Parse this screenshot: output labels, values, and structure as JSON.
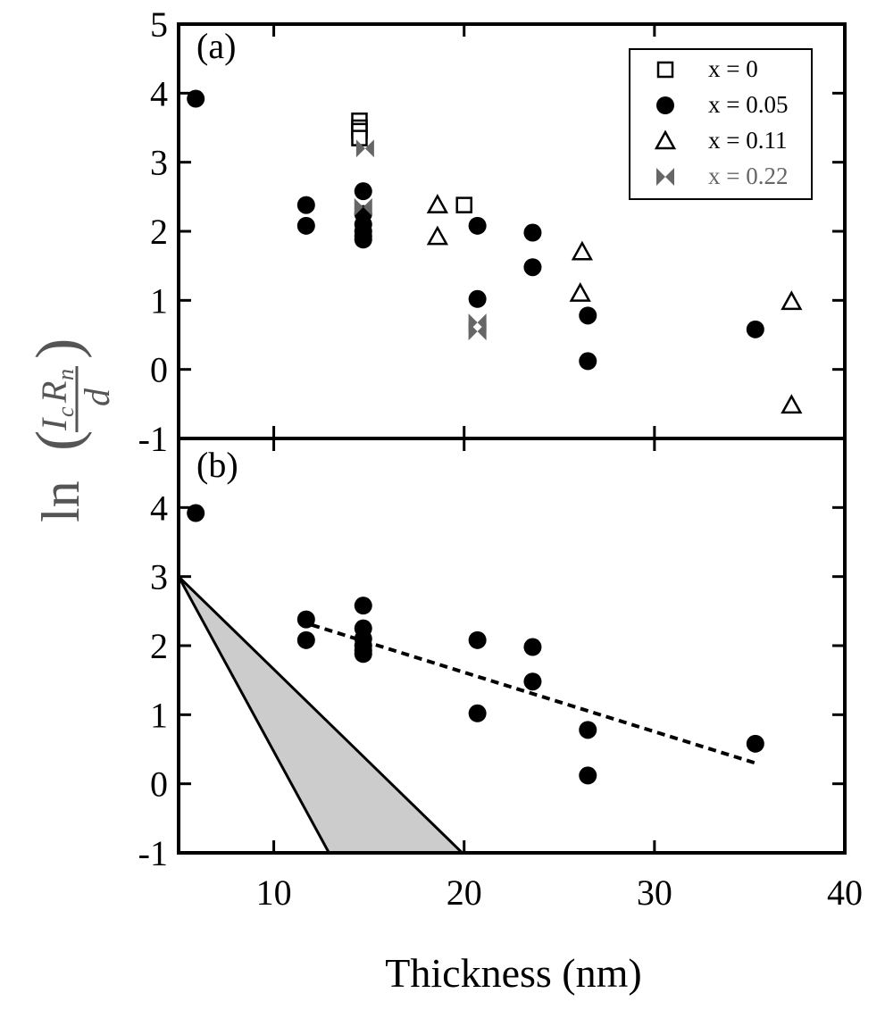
{
  "chart_data": [
    {
      "panel_label": "(a)",
      "type": "scatter",
      "xlabel": "Thickness (nm)",
      "ylabel": "ln(IcRn/d)",
      "xlim": [
        5,
        40
      ],
      "ylim": [
        -1,
        5
      ],
      "x_ticks": [
        "10",
        "20",
        "30",
        "40"
      ],
      "y_ticks": [
        "5",
        "4",
        "3",
        "2",
        "1",
        "0",
        "-1"
      ],
      "legend_position": "top-right",
      "series": [
        {
          "name": "x = 0",
          "marker": "open-square",
          "color": "#000000",
          "x": [
            14.5,
            14.5,
            14.5,
            14.5,
            20.0
          ],
          "y": [
            3.6,
            3.5,
            3.45,
            3.35,
            2.38
          ]
        },
        {
          "name": "x = 0.05",
          "marker": "filled-circle",
          "color": "#000000",
          "x": [
            5.9,
            11.7,
            11.7,
            14.7,
            14.7,
            14.7,
            14.7,
            14.7,
            14.7,
            20.7,
            20.7,
            23.6,
            23.6,
            26.5,
            26.5,
            35.3
          ],
          "y": [
            3.92,
            2.38,
            2.08,
            2.58,
            2.25,
            2.1,
            2.0,
            1.93,
            1.88,
            2.08,
            1.02,
            1.98,
            1.48,
            0.78,
            0.12,
            0.58
          ]
        },
        {
          "name": "x = 0.11",
          "marker": "open-triangle",
          "color": "#000000",
          "x": [
            18.6,
            18.6,
            26.2,
            26.1,
            37.2,
            37.2
          ],
          "y": [
            2.38,
            1.92,
            1.7,
            1.1,
            0.98,
            -0.52
          ]
        },
        {
          "name": "x = 0.22",
          "marker": "bowtie",
          "color": "#666666",
          "x": [
            14.8,
            14.7,
            20.7,
            20.7
          ],
          "y": [
            3.2,
            2.35,
            0.68,
            0.55
          ]
        }
      ]
    },
    {
      "panel_label": "(b)",
      "type": "scatter",
      "xlabel": "Thickness (nm)",
      "ylabel": "ln(IcRn/d)",
      "xlim": [
        5,
        40
      ],
      "ylim": [
        -1,
        5
      ],
      "x_ticks": [
        "10",
        "20",
        "30",
        "40"
      ],
      "y_ticks": [
        "4",
        "3",
        "2",
        "1",
        "0",
        "-1"
      ],
      "series": [
        {
          "name": "x = 0.05",
          "marker": "filled-circle",
          "color": "#000000",
          "x": [
            5.9,
            11.7,
            11.7,
            14.7,
            14.7,
            14.7,
            14.7,
            14.7,
            14.7,
            20.7,
            20.7,
            23.6,
            23.6,
            26.5,
            26.5,
            35.3
          ],
          "y": [
            3.92,
            2.38,
            2.08,
            2.58,
            2.25,
            2.1,
            2.0,
            1.93,
            1.88,
            2.08,
            1.02,
            1.98,
            1.48,
            0.78,
            0.12,
            0.58
          ]
        }
      ],
      "fit_line": {
        "style": "dashed",
        "color": "#000000",
        "x": [
          12.0,
          35.3
        ],
        "y": [
          2.3,
          0.3
        ]
      },
      "shaded_region": {
        "fill": "#cccccc",
        "vertices_x": [
          5.0,
          12.9,
          19.9
        ],
        "vertices_y": [
          3.0,
          -1.0,
          -1.0
        ]
      }
    }
  ]
}
